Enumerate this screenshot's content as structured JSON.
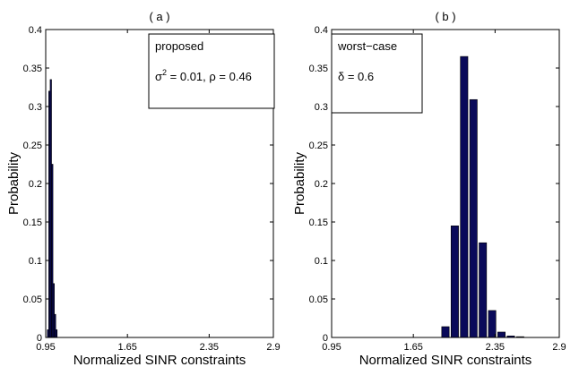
{
  "chart_data": [
    {
      "type": "bar",
      "title": "( a )",
      "xlabel": "Normalized SINR constraints",
      "ylabel": "Probability",
      "xlim": [
        0.95,
        2.9
      ],
      "ylim": [
        0,
        0.4
      ],
      "xticks": [
        "0.95",
        "1.65",
        "2.35",
        "2.9"
      ],
      "yticks": [
        "0",
        "0.05",
        "0.1",
        "0.15",
        "0.2",
        "0.25",
        "0.3",
        "0.35",
        "0.4"
      ],
      "grid": false,
      "bar_color": "#0a0a5a",
      "bar_width": 0.012,
      "x": [
        0.97,
        0.982,
        0.994,
        1.006,
        1.018,
        1.03,
        1.042
      ],
      "values": [
        0.01,
        0.32,
        0.335,
        0.225,
        0.07,
        0.03,
        0.01
      ],
      "legend": {
        "position": "top-right",
        "lines": [
          "proposed",
          "σ^2 = 0.01, ρ = 0.46"
        ]
      }
    },
    {
      "type": "bar",
      "title": "( b )",
      "xlabel": "Normalized SINR constraints",
      "ylabel": "Probability",
      "xlim": [
        0.95,
        2.9
      ],
      "ylim": [
        0,
        0.4
      ],
      "xticks": [
        "0.95",
        "1.65",
        "2.35",
        "2.9"
      ],
      "yticks": [
        "0",
        "0.05",
        "0.1",
        "0.15",
        "0.2",
        "0.25",
        "0.3",
        "0.35",
        "0.4"
      ],
      "grid": false,
      "bar_color": "#0a0a5a",
      "bar_width": 0.064,
      "x": [
        1.925,
        2.005,
        2.085,
        2.165,
        2.245,
        2.325,
        2.405,
        2.485,
        2.565
      ],
      "values": [
        0.014,
        0.145,
        0.365,
        0.309,
        0.123,
        0.035,
        0.007,
        0.002,
        0.001
      ],
      "legend": {
        "position": "top-left",
        "lines": [
          "worst−case",
          "δ = 0.6"
        ]
      }
    }
  ]
}
